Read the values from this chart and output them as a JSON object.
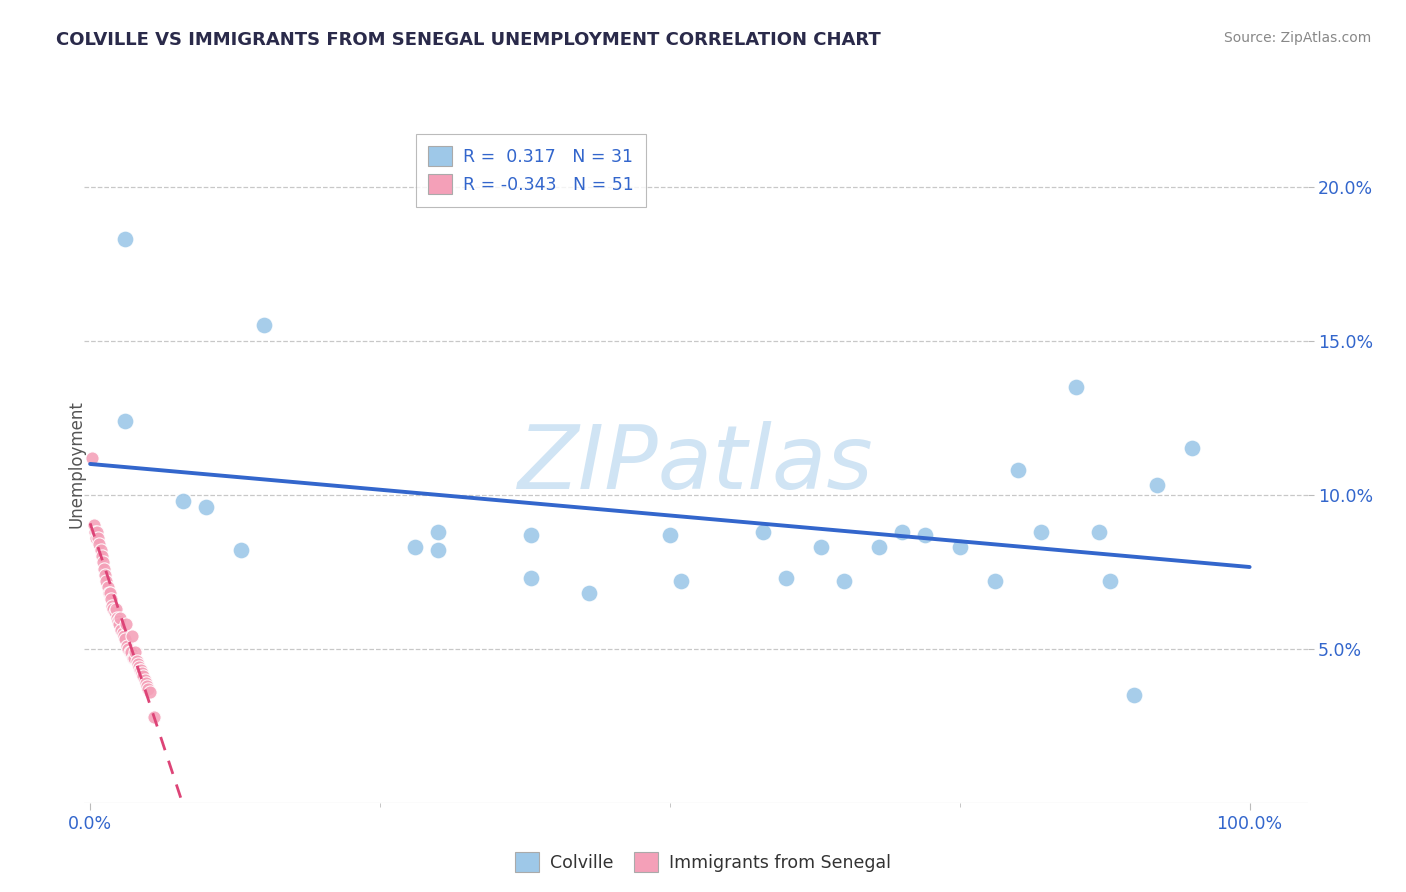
{
  "title": "COLVILLE VS IMMIGRANTS FROM SENEGAL UNEMPLOYMENT CORRELATION CHART",
  "source": "Source: ZipAtlas.com",
  "ylabel": "Unemployment",
  "legend_colville": "Colville",
  "legend_senegal": "Immigrants from Senegal",
  "r_colville": 0.317,
  "n_colville": 31,
  "r_senegal": -0.343,
  "n_senegal": 51,
  "colville_color": "#9ec8e8",
  "senegal_color": "#f4a0b8",
  "trend_blue_color": "#3366cc",
  "trend_pink_color": "#dd4477",
  "background": "#ffffff",
  "grid_color": "#c8c8c8",
  "watermark_color": "#d0e4f4",
  "colville_x": [
    0.03,
    0.03,
    0.08,
    0.1,
    0.13,
    0.15,
    0.28,
    0.3,
    0.3,
    0.38,
    0.38,
    0.43,
    0.5,
    0.51,
    0.58,
    0.6,
    0.63,
    0.65,
    0.68,
    0.7,
    0.72,
    0.75,
    0.78,
    0.8,
    0.82,
    0.85,
    0.87,
    0.88,
    0.9,
    0.92,
    0.95
  ],
  "colville_y": [
    0.183,
    0.124,
    0.098,
    0.096,
    0.082,
    0.155,
    0.083,
    0.088,
    0.082,
    0.087,
    0.073,
    0.068,
    0.087,
    0.072,
    0.088,
    0.073,
    0.083,
    0.072,
    0.083,
    0.088,
    0.087,
    0.083,
    0.072,
    0.108,
    0.088,
    0.135,
    0.088,
    0.072,
    0.035,
    0.103,
    0.115
  ],
  "senegal_x": [
    0.002,
    0.003,
    0.004,
    0.005,
    0.006,
    0.007,
    0.008,
    0.009,
    0.01,
    0.011,
    0.012,
    0.013,
    0.014,
    0.015,
    0.016,
    0.017,
    0.018,
    0.019,
    0.02,
    0.021,
    0.022,
    0.023,
    0.024,
    0.025,
    0.026,
    0.027,
    0.028,
    0.029,
    0.03,
    0.031,
    0.032,
    0.033,
    0.034,
    0.035,
    0.036,
    0.037,
    0.038,
    0.039,
    0.04,
    0.041,
    0.042,
    0.043,
    0.044,
    0.045,
    0.046,
    0.047,
    0.048,
    0.049,
    0.05,
    0.052,
    0.055
  ],
  "senegal_y": [
    0.112,
    0.09,
    0.088,
    0.086,
    0.088,
    0.086,
    0.084,
    0.082,
    0.08,
    0.078,
    0.076,
    0.074,
    0.072,
    0.07,
    0.068,
    0.068,
    0.066,
    0.064,
    0.063,
    0.062,
    0.063,
    0.06,
    0.059,
    0.058,
    0.06,
    0.056,
    0.055,
    0.054,
    0.053,
    0.058,
    0.051,
    0.05,
    0.049,
    0.049,
    0.054,
    0.047,
    0.047,
    0.049,
    0.046,
    0.045,
    0.044,
    0.043,
    0.043,
    0.042,
    0.041,
    0.04,
    0.039,
    0.038,
    0.037,
    0.036,
    0.028
  ],
  "ylim": [
    0.0,
    0.22
  ],
  "xlim": [
    -0.005,
    1.05
  ],
  "ytick_vals": [
    0.05,
    0.1,
    0.15,
    0.2
  ],
  "ytick_labels": [
    "5.0%",
    "10.0%",
    "15.0%",
    "20.0%"
  ]
}
